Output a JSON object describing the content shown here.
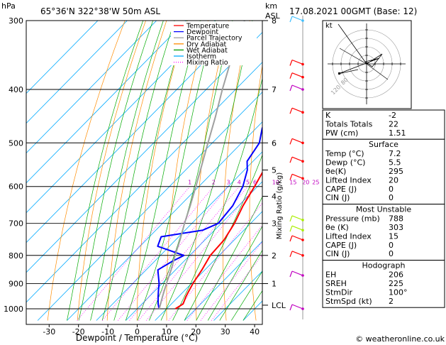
{
  "header": {
    "title": "65°36'N  322°38'W  50m  ASL",
    "date": "17.08.2021  00GMT  (Base: 12)",
    "y_unit": "hPa",
    "km_label": "km",
    "asl_label": "ASL"
  },
  "footer": {
    "copyright": "© weatheronline.co.uk"
  },
  "chart_data": {
    "type": "skew-t",
    "xlabel": "Dewpoint / Temperature (°C)",
    "mixing_label": "Mixing Ratio (g/kg)",
    "x_ticks": [
      -30,
      -20,
      -10,
      0,
      10,
      20,
      30,
      40
    ],
    "pressure_levels": [
      300,
      400,
      500,
      600,
      700,
      800,
      900,
      1000
    ],
    "km_ticks": [
      {
        "p": 300,
        "label": "8"
      },
      {
        "p": 400,
        "label": "7"
      },
      {
        "p": 500,
        "label": "6"
      },
      {
        "p": 560,
        "label": "5"
      },
      {
        "p": 625,
        "label": "4"
      },
      {
        "p": 700,
        "label": "3"
      },
      {
        "p": 800,
        "label": "2"
      },
      {
        "p": 900,
        "label": "1"
      },
      {
        "p": 985,
        "label": "LCL"
      }
    ],
    "mixing_ratios": [
      "1",
      "2",
      "3",
      "4",
      "5",
      "6",
      "10",
      "15",
      "20",
      "25"
    ],
    "mixing_values": [
      1,
      2,
      3,
      4,
      5,
      6,
      10,
      15,
      20,
      25
    ],
    "legend": [
      {
        "label": "Temperature",
        "color": "#ff0000"
      },
      {
        "label": "Dewpoint",
        "color": "#0000ff"
      },
      {
        "label": "Parcel Trajectory",
        "color": "#a0a0a0"
      },
      {
        "label": "Dry Adiabat",
        "color": "#ff8c00"
      },
      {
        "label": "Wet Adiabat",
        "color": "#009900"
      },
      {
        "label": "Isotherm",
        "color": "#00aaff"
      },
      {
        "label": "Mixing Ratio",
        "color": "#ff00ff"
      }
    ],
    "series": [
      {
        "name": "Temperature",
        "points": [
          [
            1000,
            13
          ],
          [
            980,
            14
          ],
          [
            950,
            12.5
          ],
          [
            925,
            11.5
          ],
          [
            900,
            10.5
          ],
          [
            850,
            9
          ],
          [
            800,
            7
          ],
          [
            750,
            6.5
          ],
          [
            700,
            4.5
          ],
          [
            650,
            1.5
          ],
          [
            600,
            -1
          ],
          [
            550,
            -4
          ],
          [
            500,
            -8
          ],
          [
            450,
            -12.5
          ],
          [
            400,
            -18
          ],
          [
            350,
            -25
          ],
          [
            300,
            -32
          ]
        ]
      },
      {
        "name": "Dewpoint",
        "points": [
          [
            1000,
            7.5
          ],
          [
            980,
            5.5
          ],
          [
            950,
            3
          ],
          [
            925,
            1
          ],
          [
            900,
            -1
          ],
          [
            850,
            -6
          ],
          [
            820,
            -4
          ],
          [
            800,
            -2
          ],
          [
            770,
            -14
          ],
          [
            740,
            -16
          ],
          [
            720,
            -4
          ],
          [
            700,
            -1
          ],
          [
            650,
            -2
          ],
          [
            600,
            -5
          ],
          [
            560,
            -9
          ],
          [
            540,
            -12
          ],
          [
            500,
            -14
          ],
          [
            470,
            -18
          ],
          [
            440,
            -20
          ],
          [
            400,
            -23
          ],
          [
            350,
            -32
          ],
          [
            310,
            -36
          ],
          [
            300,
            -38
          ]
        ]
      },
      {
        "name": "Parcel Trajectory",
        "points": [
          [
            1000,
            7.5
          ],
          [
            950,
            4.5
          ],
          [
            900,
            1.5
          ],
          [
            850,
            -1.5
          ],
          [
            800,
            -5
          ],
          [
            750,
            -8.5
          ],
          [
            700,
            -12.5
          ],
          [
            650,
            -16.5
          ],
          [
            600,
            -21
          ],
          [
            550,
            -26
          ],
          [
            500,
            -31.5
          ],
          [
            450,
            -37.5
          ],
          [
            400,
            -44.5
          ],
          [
            350,
            -52
          ],
          [
            300,
            -60
          ]
        ]
      }
    ]
  },
  "indices": {
    "rows1": [
      {
        "label": "K",
        "value": "-2"
      },
      {
        "label": "Totals Totals",
        "value": "22"
      },
      {
        "label": "PW (cm)",
        "value": "1.51"
      }
    ],
    "surface": {
      "title": "Surface",
      "rows": [
        {
          "label": "Temp (°C)",
          "value": "7.2"
        },
        {
          "label": "Dewp (°C)",
          "value": "5.5"
        },
        {
          "label": "θe(K)",
          "value": "295"
        },
        {
          "label": "Lifted Index",
          "value": "20"
        },
        {
          "label": "CAPE (J)",
          "value": "0"
        },
        {
          "label": "CIN (J)",
          "value": "0"
        }
      ]
    },
    "unstable": {
      "title": "Most Unstable",
      "rows": [
        {
          "label": "Pressure (mb)",
          "value": "788"
        },
        {
          "label": "θe (K)",
          "value": "303"
        },
        {
          "label": "Lifted Index",
          "value": "15"
        },
        {
          "label": "CAPE (J)",
          "value": "0"
        },
        {
          "label": "CIN (J)",
          "value": "0"
        }
      ]
    },
    "hodograph": {
      "title": "Hodograph",
      "rows": [
        {
          "label": "EH",
          "value": "206"
        },
        {
          "label": "SREH",
          "value": "225"
        },
        {
          "label": "StmDir",
          "value": "100°"
        },
        {
          "label": "StmSpd (kt)",
          "value": "2"
        }
      ]
    }
  },
  "hodo": {
    "unit": "kt",
    "ring_labels": [
      "120",
      "80"
    ]
  }
}
